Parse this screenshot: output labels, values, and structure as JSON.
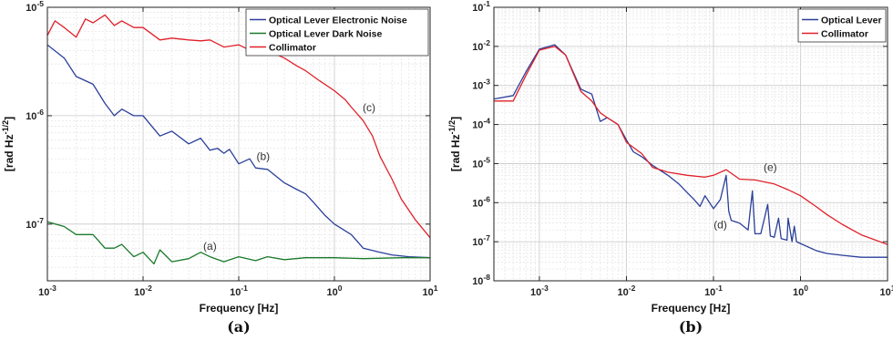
{
  "chart_data": [
    {
      "type": "line",
      "panel_label": "(a)",
      "xlabel": "Frequency  [Hz]",
      "ylabel": "[rad Hz^-1/2]",
      "xscale": "log",
      "yscale": "log",
      "xlim": [
        0.001,
        10
      ],
      "ylim": [
        3e-08,
        1e-05
      ],
      "x_ticks": [
        "10^-3",
        "10^-2",
        "10^-1",
        "10^0",
        "10^1"
      ],
      "y_ticks": [
        "10^-7",
        "10^-6",
        "10^-5"
      ],
      "grid": true,
      "legend_position": "top-right",
      "series": [
        {
          "name": "Optical Lever Electronic Noise",
          "color": "#2a3f9a",
          "annotation": "(b)",
          "annotation_at": [
            0.18,
            3.9e-07
          ],
          "x": [
            0.001,
            0.0015,
            0.002,
            0.003,
            0.004,
            0.005,
            0.006,
            0.008,
            0.01,
            0.015,
            0.02,
            0.03,
            0.04,
            0.05,
            0.06,
            0.07,
            0.08,
            0.1,
            0.13,
            0.15,
            0.2,
            0.3,
            0.4,
            0.5,
            0.6,
            0.8,
            1.0,
            1.5,
            2.0,
            3.0,
            4.0,
            6.0,
            10.0
          ],
          "y": [
            4.5e-06,
            3.4e-06,
            2.3e-06,
            1.95e-06,
            1.3e-06,
            1e-06,
            1.15e-06,
            1e-06,
            1e-06,
            6.5e-07,
            7.2e-07,
            5.5e-07,
            6.2e-07,
            4.8e-07,
            5e-07,
            4.5e-07,
            4.9e-07,
            3.6e-07,
            4e-07,
            3.3e-07,
            3.2e-07,
            2.4e-07,
            2.1e-07,
            1.9e-07,
            1.6e-07,
            1.2e-07,
            1e-07,
            8e-08,
            6e-08,
            5.5e-08,
            5.2e-08,
            5e-08,
            4.9e-08
          ]
        },
        {
          "name": "Optical Lever Dark Noise",
          "color": "#1a7a2a",
          "annotation": "(a)",
          "annotation_at": [
            0.05,
            5.8e-08
          ],
          "x": [
            0.001,
            0.0015,
            0.002,
            0.003,
            0.004,
            0.005,
            0.006,
            0.008,
            0.01,
            0.013,
            0.015,
            0.02,
            0.03,
            0.04,
            0.05,
            0.07,
            0.1,
            0.15,
            0.2,
            0.3,
            0.5,
            1.0,
            2.0,
            5.0,
            10.0
          ],
          "y": [
            1.05e-07,
            9.5e-08,
            8e-08,
            8e-08,
            6e-08,
            6e-08,
            6.5e-08,
            5e-08,
            5.5e-08,
            4.3e-08,
            5.8e-08,
            4.5e-08,
            4.8e-08,
            5.5e-08,
            5e-08,
            4.5e-08,
            5e-08,
            4.6e-08,
            5e-08,
            4.7e-08,
            4.9e-08,
            4.9e-08,
            4.8e-08,
            4.9e-08,
            4.9e-08
          ]
        },
        {
          "name": "Collimator",
          "color": "#e0202a",
          "annotation": "(c)",
          "annotation_at": [
            2.3,
            1.1e-06
          ],
          "x": [
            0.001,
            0.0012,
            0.0015,
            0.002,
            0.0025,
            0.003,
            0.004,
            0.005,
            0.006,
            0.008,
            0.01,
            0.015,
            0.02,
            0.03,
            0.04,
            0.05,
            0.07,
            0.1,
            0.15,
            0.2,
            0.3,
            0.4,
            0.5,
            0.7,
            1.0,
            1.3,
            1.5,
            2.0,
            2.5,
            3.0,
            4.0,
            5.0,
            7.0,
            10.0
          ],
          "y": [
            5.5e-06,
            7.5e-06,
            6.5e-06,
            5.3e-06,
            7.8e-06,
            7.2e-06,
            8.5e-06,
            6.8e-06,
            7.5e-06,
            6.5e-06,
            6.5e-06,
            5e-06,
            5.2e-06,
            5e-06,
            4.9e-06,
            5e-06,
            4.3e-06,
            4.5e-06,
            3.8e-06,
            4e-06,
            3.4e-06,
            2.9e-06,
            2.6e-06,
            2.1e-06,
            1.7e-06,
            1.4e-06,
            1.2e-06,
            9e-07,
            6.5e-07,
            4.2e-07,
            2.6e-07,
            1.7e-07,
            1.1e-07,
            7.5e-08
          ]
        }
      ]
    },
    {
      "type": "line",
      "panel_label": "(b)",
      "xlabel": "Frequency  [Hz]",
      "ylabel": "[rad Hz^-1/2]",
      "xscale": "log",
      "yscale": "log",
      "xlim": [
        0.0003,
        10
      ],
      "ylim": [
        1e-08,
        0.1
      ],
      "x_ticks": [
        "10^-3",
        "10^-2",
        "10^-1",
        "10^0",
        "10^1"
      ],
      "y_ticks": [
        "10^-8",
        "10^-7",
        "10^-6",
        "10^-5",
        "10^-4",
        "10^-3",
        "10^-2",
        "10^-1"
      ],
      "grid": true,
      "legend_position": "top-right",
      "series": [
        {
          "name": "Optical Lever",
          "color": "#2a3f9a",
          "annotation": "(d)",
          "annotation_at": [
            0.12,
            2.2e-07
          ],
          "x": [
            0.0003,
            0.0005,
            0.0007,
            0.001,
            0.0015,
            0.002,
            0.003,
            0.004,
            0.005,
            0.006,
            0.008,
            0.01,
            0.012,
            0.015,
            0.02,
            0.03,
            0.04,
            0.05,
            0.06,
            0.07,
            0.08,
            0.1,
            0.12,
            0.14,
            0.15,
            0.16,
            0.2,
            0.25,
            0.28,
            0.3,
            0.35,
            0.42,
            0.45,
            0.5,
            0.56,
            0.6,
            0.7,
            0.72,
            0.8,
            0.85,
            0.9,
            1.0,
            1.5,
            2.0,
            3.0,
            5.0,
            10.0
          ],
          "y": [
            0.00045,
            0.00055,
            0.0022,
            0.0085,
            0.011,
            0.006,
            0.0008,
            0.0006,
            0.00012,
            0.00015,
            0.0001,
            4e-05,
            2e-05,
            1.5e-05,
            9e-06,
            5e-06,
            3e-06,
            1.8e-06,
            1.2e-06,
            8e-07,
            1.5e-06,
            7e-07,
            1.2e-06,
            5e-06,
            6e-07,
            3.5e-07,
            3e-07,
            2e-07,
            2e-06,
            1.6e-07,
            1.6e-07,
            9e-07,
            1.4e-07,
            1.3e-07,
            4e-07,
            1.2e-07,
            1.1e-07,
            4e-07,
            1e-07,
            2.5e-07,
            1e-07,
            9e-08,
            6e-08,
            5e-08,
            4.5e-08,
            4e-08,
            4e-08
          ]
        },
        {
          "name": "Collimator",
          "color": "#e0202a",
          "annotation": "(e)",
          "annotation_at": [
            0.45,
            6.5e-06
          ],
          "x": [
            0.0003,
            0.0005,
            0.0007,
            0.001,
            0.0015,
            0.002,
            0.003,
            0.004,
            0.005,
            0.006,
            0.008,
            0.01,
            0.015,
            0.02,
            0.03,
            0.05,
            0.08,
            0.1,
            0.14,
            0.2,
            0.3,
            0.5,
            0.7,
            1.0,
            1.5,
            2.0,
            3.0,
            5.0,
            10.0
          ],
          "y": [
            0.0004,
            0.0004,
            0.0018,
            0.008,
            0.01,
            0.006,
            0.0007,
            0.0004,
            0.0002,
            0.00015,
            0.0001,
            3.5e-05,
            1.8e-05,
            8e-06,
            6e-06,
            5e-06,
            4.5e-06,
            5e-06,
            7e-06,
            4e-06,
            3.8e-06,
            3e-06,
            2.2e-06,
            1.5e-06,
            8e-07,
            5e-07,
            2.8e-07,
            1.5e-07,
            8.5e-08
          ]
        }
      ]
    }
  ]
}
